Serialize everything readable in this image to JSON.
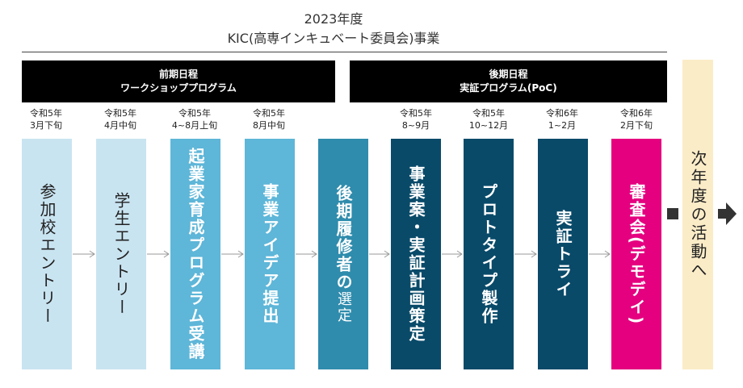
{
  "header": {
    "title_line1": "2023年度",
    "title_line2": "KIC(高専インキュベート委員会)事業"
  },
  "phases": [
    {
      "line1": "前期日程",
      "line2": "ワークショッププログラム"
    },
    {
      "line1": "後期日程",
      "line2": "実証プログラム(PoC)"
    }
  ],
  "steps": [
    {
      "era": "令和5年",
      "period": "3月下旬",
      "label": "参加校エントリー",
      "color": "#c9e4f1",
      "text_color": "#222222"
    },
    {
      "era": "令和5年",
      "period": "4月中旬",
      "label": "学生エントリー",
      "color": "#c9e4f1",
      "text_color": "#222222"
    },
    {
      "era": "令和5年",
      "period": "4~8月上旬",
      "label": "起業家育成プログラム受講",
      "color": "#5eb6d8",
      "text_color": "#ffffff"
    },
    {
      "era": "令和5年",
      "period": "8月中旬",
      "label": "事業アイデア提出",
      "color": "#5eb6d8",
      "text_color": "#ffffff"
    },
    {
      "era": "",
      "period": "",
      "label": "後期履修者の",
      "label_suffix": "選定",
      "color": "#2f8cad",
      "text_color": "#ffffff"
    },
    {
      "era": "令和5年",
      "period": "8~9月",
      "label": "事業案・実証計画策定",
      "color": "#094a69",
      "text_color": "#ffffff"
    },
    {
      "era": "令和5年",
      "period": "10~12月",
      "label": "プロトタイプ製作",
      "color": "#094a69",
      "text_color": "#ffffff"
    },
    {
      "era": "令和6年",
      "period": "1~2月",
      "label": "実証トライ",
      "color": "#094a69",
      "text_color": "#ffffff"
    },
    {
      "era": "令和6年",
      "period": "2月下旬",
      "label": "審査会(デモデイ)",
      "color": "#e4007f",
      "text_color": "#ffffff"
    }
  ],
  "next_activity": {
    "label": "次年度の活動へ",
    "color": "#fbecc8"
  }
}
